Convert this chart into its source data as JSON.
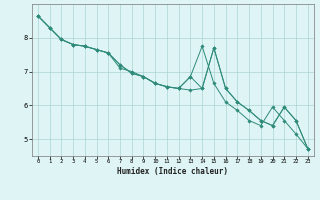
{
  "xlabel": "Humidex (Indice chaleur)",
  "x_values": [
    0,
    1,
    2,
    3,
    4,
    5,
    6,
    7,
    8,
    9,
    10,
    11,
    12,
    13,
    14,
    15,
    16,
    17,
    18,
    19,
    20,
    21,
    22,
    23
  ],
  "line1": [
    8.65,
    8.3,
    7.95,
    7.8,
    7.75,
    7.65,
    7.55,
    7.2,
    6.95,
    6.85,
    6.65,
    6.55,
    6.5,
    6.85,
    7.75,
    6.65,
    6.1,
    5.85,
    5.55,
    5.4,
    5.95,
    5.55,
    5.15,
    4.72
  ],
  "line2": [
    8.65,
    8.3,
    7.95,
    7.8,
    7.75,
    7.65,
    7.55,
    7.2,
    6.95,
    6.85,
    6.65,
    6.55,
    6.5,
    6.45,
    6.5,
    7.7,
    6.5,
    6.1,
    5.85,
    5.55,
    5.4,
    5.95,
    5.55,
    4.72
  ],
  "line3": [
    8.65,
    8.3,
    7.95,
    7.8,
    7.75,
    7.65,
    7.55,
    7.1,
    7.0,
    6.85,
    6.65,
    6.55,
    6.5,
    6.85,
    6.5,
    7.7,
    6.5,
    6.1,
    5.85,
    5.55,
    5.4,
    5.95,
    5.55,
    4.72
  ],
  "line_color": "#2e8b7a",
  "background_color": "#dff4f4",
  "grid_color": "#aad4d4",
  "ylim": [
    4.5,
    9.0
  ],
  "xlim": [
    -0.5,
    23.5
  ],
  "yticks": [
    5,
    6,
    7,
    8
  ],
  "xticks": [
    0,
    1,
    2,
    3,
    4,
    5,
    6,
    7,
    8,
    9,
    10,
    11,
    12,
    13,
    14,
    15,
    16,
    17,
    18,
    19,
    20,
    21,
    22,
    23
  ]
}
